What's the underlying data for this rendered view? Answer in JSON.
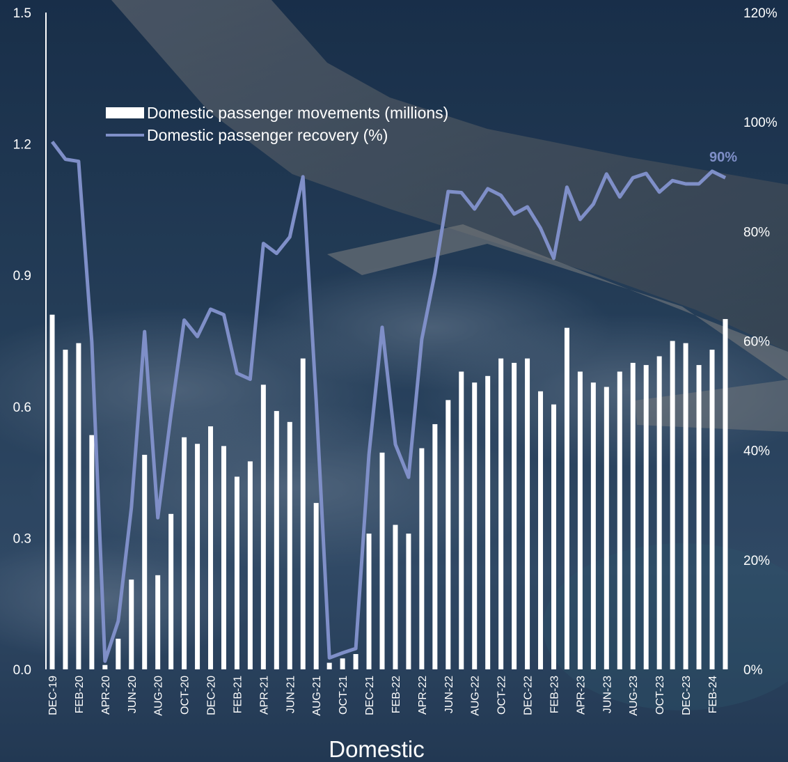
{
  "colors": {
    "bars": "#ffffff",
    "line": "#7f8fc8",
    "sky_top": "#1d3553",
    "sky_bottom": "#34506e"
  },
  "chart_data": {
    "type": "bar",
    "xlabel": "Domestic",
    "ylim_left": [
      0,
      1.5
    ],
    "ylim_right": [
      0,
      1.2
    ],
    "left_ticks": [
      "0.0",
      "0.3",
      "0.6",
      "0.9",
      "1.2",
      "1.5"
    ],
    "right_ticks": [
      "0%",
      "20%",
      "40%",
      "60%",
      "80%",
      "100%",
      "120%"
    ],
    "x_tick_labels": [
      "DEC-19",
      "FEB-20",
      "APR-20",
      "JUN-20",
      "AUG-20",
      "OCT-20",
      "DEC-20",
      "FEB-21",
      "APR-21",
      "JUN-21",
      "AUG-21",
      "OCT-21",
      "DEC-21",
      "FEB-22",
      "APR-22",
      "JUN-22",
      "AUG-22",
      "OCT-22",
      "DEC-22",
      "FEB-23",
      "APR-23",
      "JUN-23",
      "AUG-23",
      "OCT-23",
      "DEC-23",
      "FEB-24"
    ],
    "categories": [
      "DEC-19",
      "JAN-20",
      "FEB-20",
      "MAR-20",
      "APR-20",
      "MAY-20",
      "JUN-20",
      "JUL-20",
      "AUG-20",
      "SEP-20",
      "OCT-20",
      "NOV-20",
      "DEC-20",
      "JAN-21",
      "FEB-21",
      "MAR-21",
      "APR-21",
      "MAY-21",
      "JUN-21",
      "JUL-21",
      "AUG-21",
      "SEP-21",
      "OCT-21",
      "NOV-21",
      "DEC-21",
      "JAN-22",
      "FEB-22",
      "MAR-22",
      "APR-22",
      "MAY-22",
      "JUN-22",
      "JUL-22",
      "AUG-22",
      "SEP-22",
      "OCT-22",
      "NOV-22",
      "DEC-22",
      "JAN-23",
      "FEB-23",
      "MAR-23",
      "APR-23",
      "MAY-23",
      "JUN-23",
      "JUL-23",
      "AUG-23",
      "SEP-23",
      "OCT-23",
      "NOV-23",
      "DEC-23",
      "JAN-24",
      "FEB-24",
      "MAR-24"
    ],
    "series": [
      {
        "name": "Domestic passenger movements (millions)",
        "type": "bar",
        "axis": "left",
        "values": [
          0.81,
          0.73,
          0.745,
          0.535,
          0.01,
          0.07,
          0.205,
          0.49,
          0.215,
          0.355,
          0.53,
          0.515,
          0.555,
          0.51,
          0.44,
          0.475,
          0.65,
          0.59,
          0.565,
          0.71,
          0.38,
          0.015,
          0.025,
          0.035,
          0.31,
          0.495,
          0.33,
          0.31,
          0.505,
          0.56,
          0.615,
          0.68,
          0.655,
          0.67,
          0.71,
          0.7,
          0.71,
          0.635,
          0.605,
          0.78,
          0.68,
          0.655,
          0.645,
          0.68,
          0.7,
          0.695,
          0.715,
          0.75,
          0.745,
          0.695,
          0.73,
          0.8
        ]
      },
      {
        "name": "Domestic passenger recovery (%)",
        "type": "line",
        "axis": "right",
        "values": [
          0.964,
          0.932,
          0.928,
          0.598,
          0.015,
          0.088,
          0.296,
          0.617,
          0.277,
          0.465,
          0.638,
          0.608,
          0.658,
          0.648,
          0.541,
          0.53,
          0.778,
          0.76,
          0.79,
          0.9,
          0.491,
          0.021,
          0.03,
          0.038,
          0.392,
          0.625,
          0.411,
          0.351,
          0.603,
          0.724,
          0.873,
          0.871,
          0.841,
          0.878,
          0.866,
          0.832,
          0.845,
          0.806,
          0.751,
          0.881,
          0.822,
          0.85,
          0.905,
          0.863,
          0.898,
          0.906,
          0.872,
          0.893,
          0.887,
          0.887,
          0.91,
          0.898
        ]
      }
    ],
    "end_label": "90%",
    "legend_position": "top-left"
  }
}
